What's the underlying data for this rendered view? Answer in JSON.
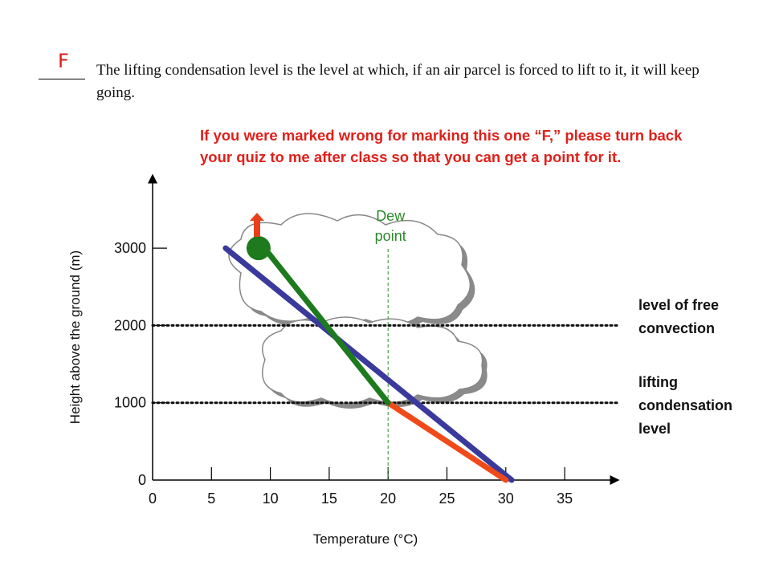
{
  "question": {
    "answer_mark": "F",
    "statement": "The lifting condensation level is the level at which, if an air parcel is forced to lift to it, it will keep going."
  },
  "note": "If you were marked wrong for marking this one “F,” please turn back your quiz to me after class so that you can get a point for it.",
  "chart_data": {
    "type": "line",
    "xlabel": "Temperature (°C)",
    "ylabel": "Height above the ground (m)",
    "x_ticks": [
      0,
      5,
      10,
      15,
      20,
      25,
      30,
      35
    ],
    "y_ticks": [
      0,
      1000,
      2000,
      3000
    ],
    "xlim": [
      0,
      40
    ],
    "ylim": [
      0,
      4000
    ],
    "series": [
      {
        "id": "environment",
        "color": "#3a3a9c",
        "points": [
          [
            6.2,
            3000
          ],
          [
            30.5,
            0
          ]
        ]
      },
      {
        "id": "parcel-dry",
        "color": "#f04a1a",
        "points": [
          [
            20,
            1000
          ],
          [
            30,
            0
          ]
        ]
      },
      {
        "id": "parcel-moist",
        "color": "#1d7a1d",
        "points": [
          [
            20,
            1000
          ],
          [
            9.5,
            3000
          ]
        ]
      }
    ],
    "dew_point": {
      "label": "Dew point",
      "x": 20,
      "color": "#2a8a2a"
    },
    "levels": [
      {
        "label": "level of free convection",
        "y": 2000
      },
      {
        "label": "lifting condensation level",
        "y": 1000
      }
    ],
    "parcel": {
      "x": 9,
      "y": 3000,
      "color": "#1d7a1d"
    },
    "arrow_color": "#e8401a"
  }
}
